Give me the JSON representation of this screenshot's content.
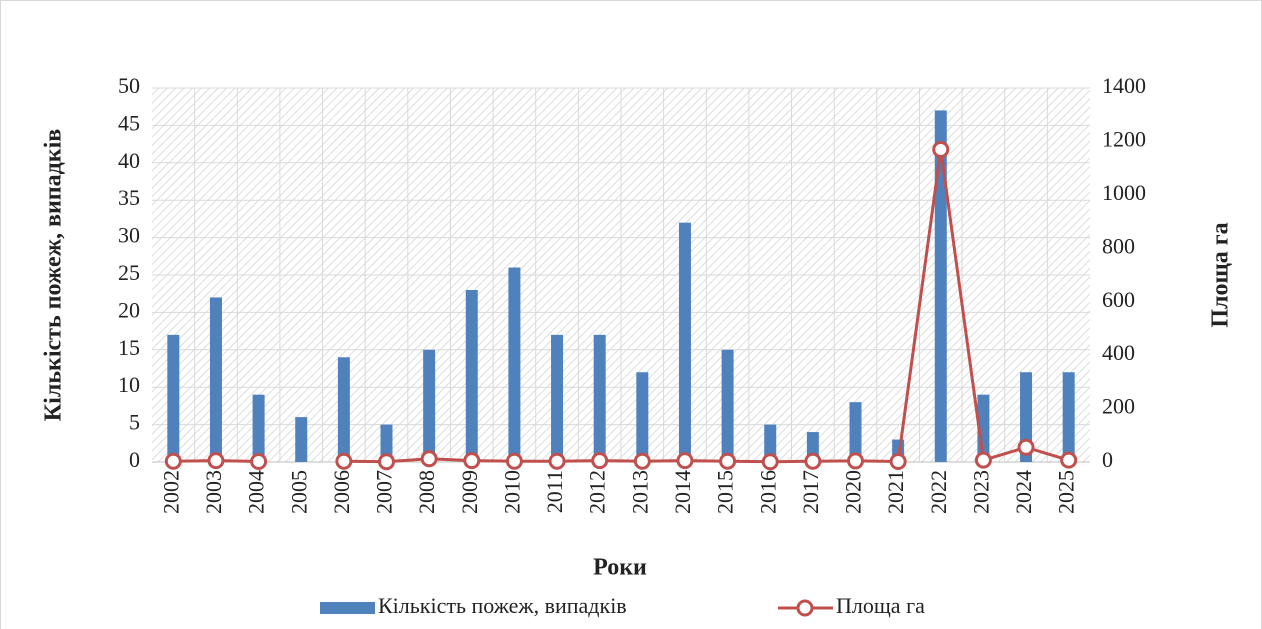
{
  "chart_data": {
    "type": "bar",
    "y_label": "Кількість пожеж, випадків",
    "y2_label": "Площа га",
    "x_label": "Роки",
    "categories": [
      "2002",
      "2003",
      "2004",
      "2005",
      "2006",
      "2007",
      "2008",
      "2009",
      "2010",
      "2011",
      "2012",
      "2013",
      "2014",
      "2015",
      "2016",
      "2017",
      "2020",
      "2021",
      "2022",
      "2023",
      "2024",
      "2025"
    ],
    "series": [
      {
        "name": "Кількість пожеж, випадків",
        "type": "bar",
        "color": "#4f81bd",
        "values": [
          17,
          22,
          9,
          6,
          14,
          5,
          15,
          23,
          26,
          17,
          17,
          12,
          32,
          15,
          5,
          4,
          8,
          3,
          47,
          9,
          12,
          12
        ]
      },
      {
        "name": "Площа га",
        "type": "line",
        "axis": "y2",
        "color": "#c0504d",
        "values": [
          3,
          5,
          2,
          null,
          3,
          1,
          12,
          5,
          3,
          3,
          5,
          3,
          5,
          3,
          1,
          3,
          4,
          2,
          1170,
          7,
          55,
          7
        ]
      }
    ],
    "ylim": [
      0,
      50
    ],
    "yticks": [
      0,
      5,
      10,
      15,
      20,
      25,
      30,
      35,
      40,
      45,
      50
    ],
    "y2lim": [
      0,
      1400
    ],
    "y2ticks": [
      0,
      200,
      400,
      600,
      800,
      1000,
      1200,
      1400
    ],
    "grid": true,
    "legend": "bottom"
  }
}
